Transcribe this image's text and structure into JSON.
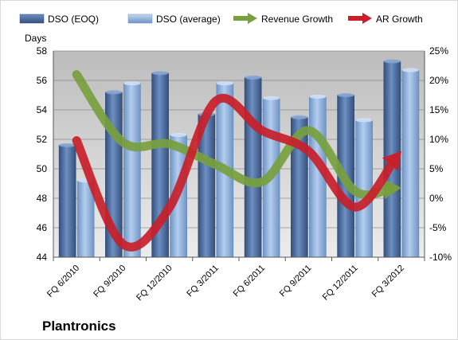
{
  "chart_data": {
    "type": "bar",
    "brand": "Plantronics",
    "ylabel": "Days",
    "ylim": [
      44,
      58
    ],
    "yticks": [
      44,
      46,
      48,
      50,
      52,
      54,
      56,
      58
    ],
    "y2lim": [
      -10,
      25
    ],
    "y2ticks": [
      "-10%",
      "-5%",
      "0%",
      "5%",
      "10%",
      "15%",
      "20%",
      "25%"
    ],
    "categories": [
      "FQ 6/2010",
      "FQ 9/2010",
      "FQ 12/2010",
      "FQ 3/2011",
      "FQ 6/2011",
      "FQ 9/2011",
      "FQ 12/2011",
      "FQ 3/2012"
    ],
    "grid": true,
    "legend_position": "top",
    "series": [
      {
        "name": "DSO (EOQ)",
        "kind": "bar",
        "color": "#4a6a9c",
        "values": [
          51.6,
          55.2,
          56.5,
          53.7,
          56.2,
          53.5,
          55.0,
          57.3
        ]
      },
      {
        "name": "DSO (average)",
        "kind": "bar",
        "color": "#8fb2dc",
        "values": [
          49.2,
          55.8,
          52.3,
          55.8,
          54.8,
          54.9,
          53.3,
          56.7
        ]
      },
      {
        "name": "Revenue Growth",
        "kind": "arrow",
        "axis": "secondary",
        "color": "#77a03e",
        "values": [
          21.0,
          9.5,
          9.2,
          5.7,
          2.8,
          11.5,
          1.2,
          1.8
        ]
      },
      {
        "name": "AR Growth",
        "kind": "arrow",
        "axis": "secondary",
        "color": "#c8202a",
        "values": [
          9.8,
          -7.8,
          -1.6,
          16.5,
          11.5,
          8.0,
          -1.5,
          8.0
        ]
      }
    ]
  }
}
